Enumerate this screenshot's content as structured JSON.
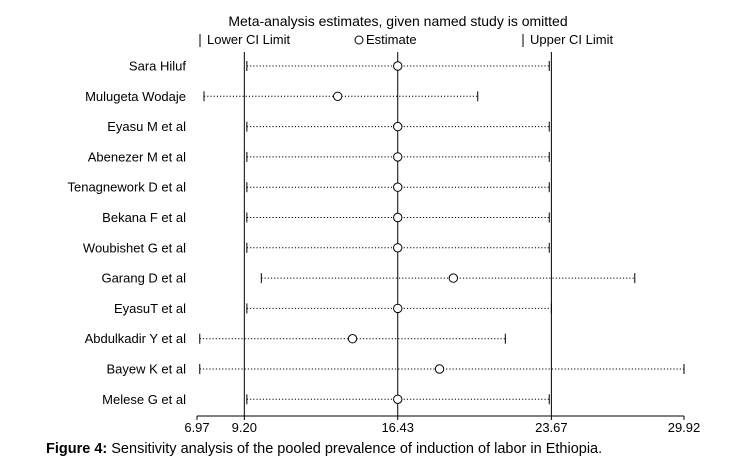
{
  "chart_data": {
    "type": "forest",
    "title": "Meta-analysis estimates, given named study is omitted",
    "legend": {
      "lower": "Lower CI Limit",
      "estimate": "Estimate",
      "upper": "Upper CI Limit",
      "placement": "top"
    },
    "x_ticks": [
      {
        "value": 6.97,
        "label": "6.97"
      },
      {
        "value": 9.2,
        "label": "9.20"
      },
      {
        "value": 16.43,
        "label": "16.43"
      },
      {
        "value": 23.67,
        "label": "23.67"
      },
      {
        "value": 29.92,
        "label": "29.92"
      }
    ],
    "reference_lines": [
      9.2,
      16.43,
      23.67
    ],
    "xlim": [
      6.97,
      29.92
    ],
    "studies": [
      {
        "name": "Sara Hiluf",
        "estimate": 16.43,
        "lower": 9.32,
        "upper": 23.57
      },
      {
        "name": "Mulugeta Wodaje",
        "estimate": 13.6,
        "lower": 7.3,
        "upper": 20.2
      },
      {
        "name": "Eyasu M et al",
        "estimate": 16.43,
        "lower": 9.32,
        "upper": 23.57
      },
      {
        "name": "Abenezer M et al",
        "estimate": 16.43,
        "lower": 9.32,
        "upper": 23.57
      },
      {
        "name": "Tenagnework D et al",
        "estimate": 16.43,
        "lower": 9.32,
        "upper": 23.57
      },
      {
        "name": "Bekana F et al",
        "estimate": 16.43,
        "lower": 9.32,
        "upper": 23.57
      },
      {
        "name": "Woubishet G et al",
        "estimate": 16.43,
        "lower": 9.32,
        "upper": 23.57
      },
      {
        "name": "Garang D et al",
        "estimate": 19.05,
        "lower": 10.0,
        "upper": 27.6
      },
      {
        "name": "EyasuT et al",
        "estimate": 16.43,
        "lower": 9.32,
        "upper": 23.67
      },
      {
        "name": "Abdulkadir Y et al",
        "estimate": 14.3,
        "lower": 7.1,
        "upper": 21.5
      },
      {
        "name": "Bayew K et al",
        "estimate": 18.4,
        "lower": 7.1,
        "upper": 29.92
      },
      {
        "name": "Melese G et al",
        "estimate": 16.43,
        "lower": 9.32,
        "upper": 23.57
      }
    ]
  },
  "caption": {
    "label": "Figure 4:",
    "text": " Sensitivity analysis of the pooled prevalence of induction of labor in Ethiopia."
  }
}
